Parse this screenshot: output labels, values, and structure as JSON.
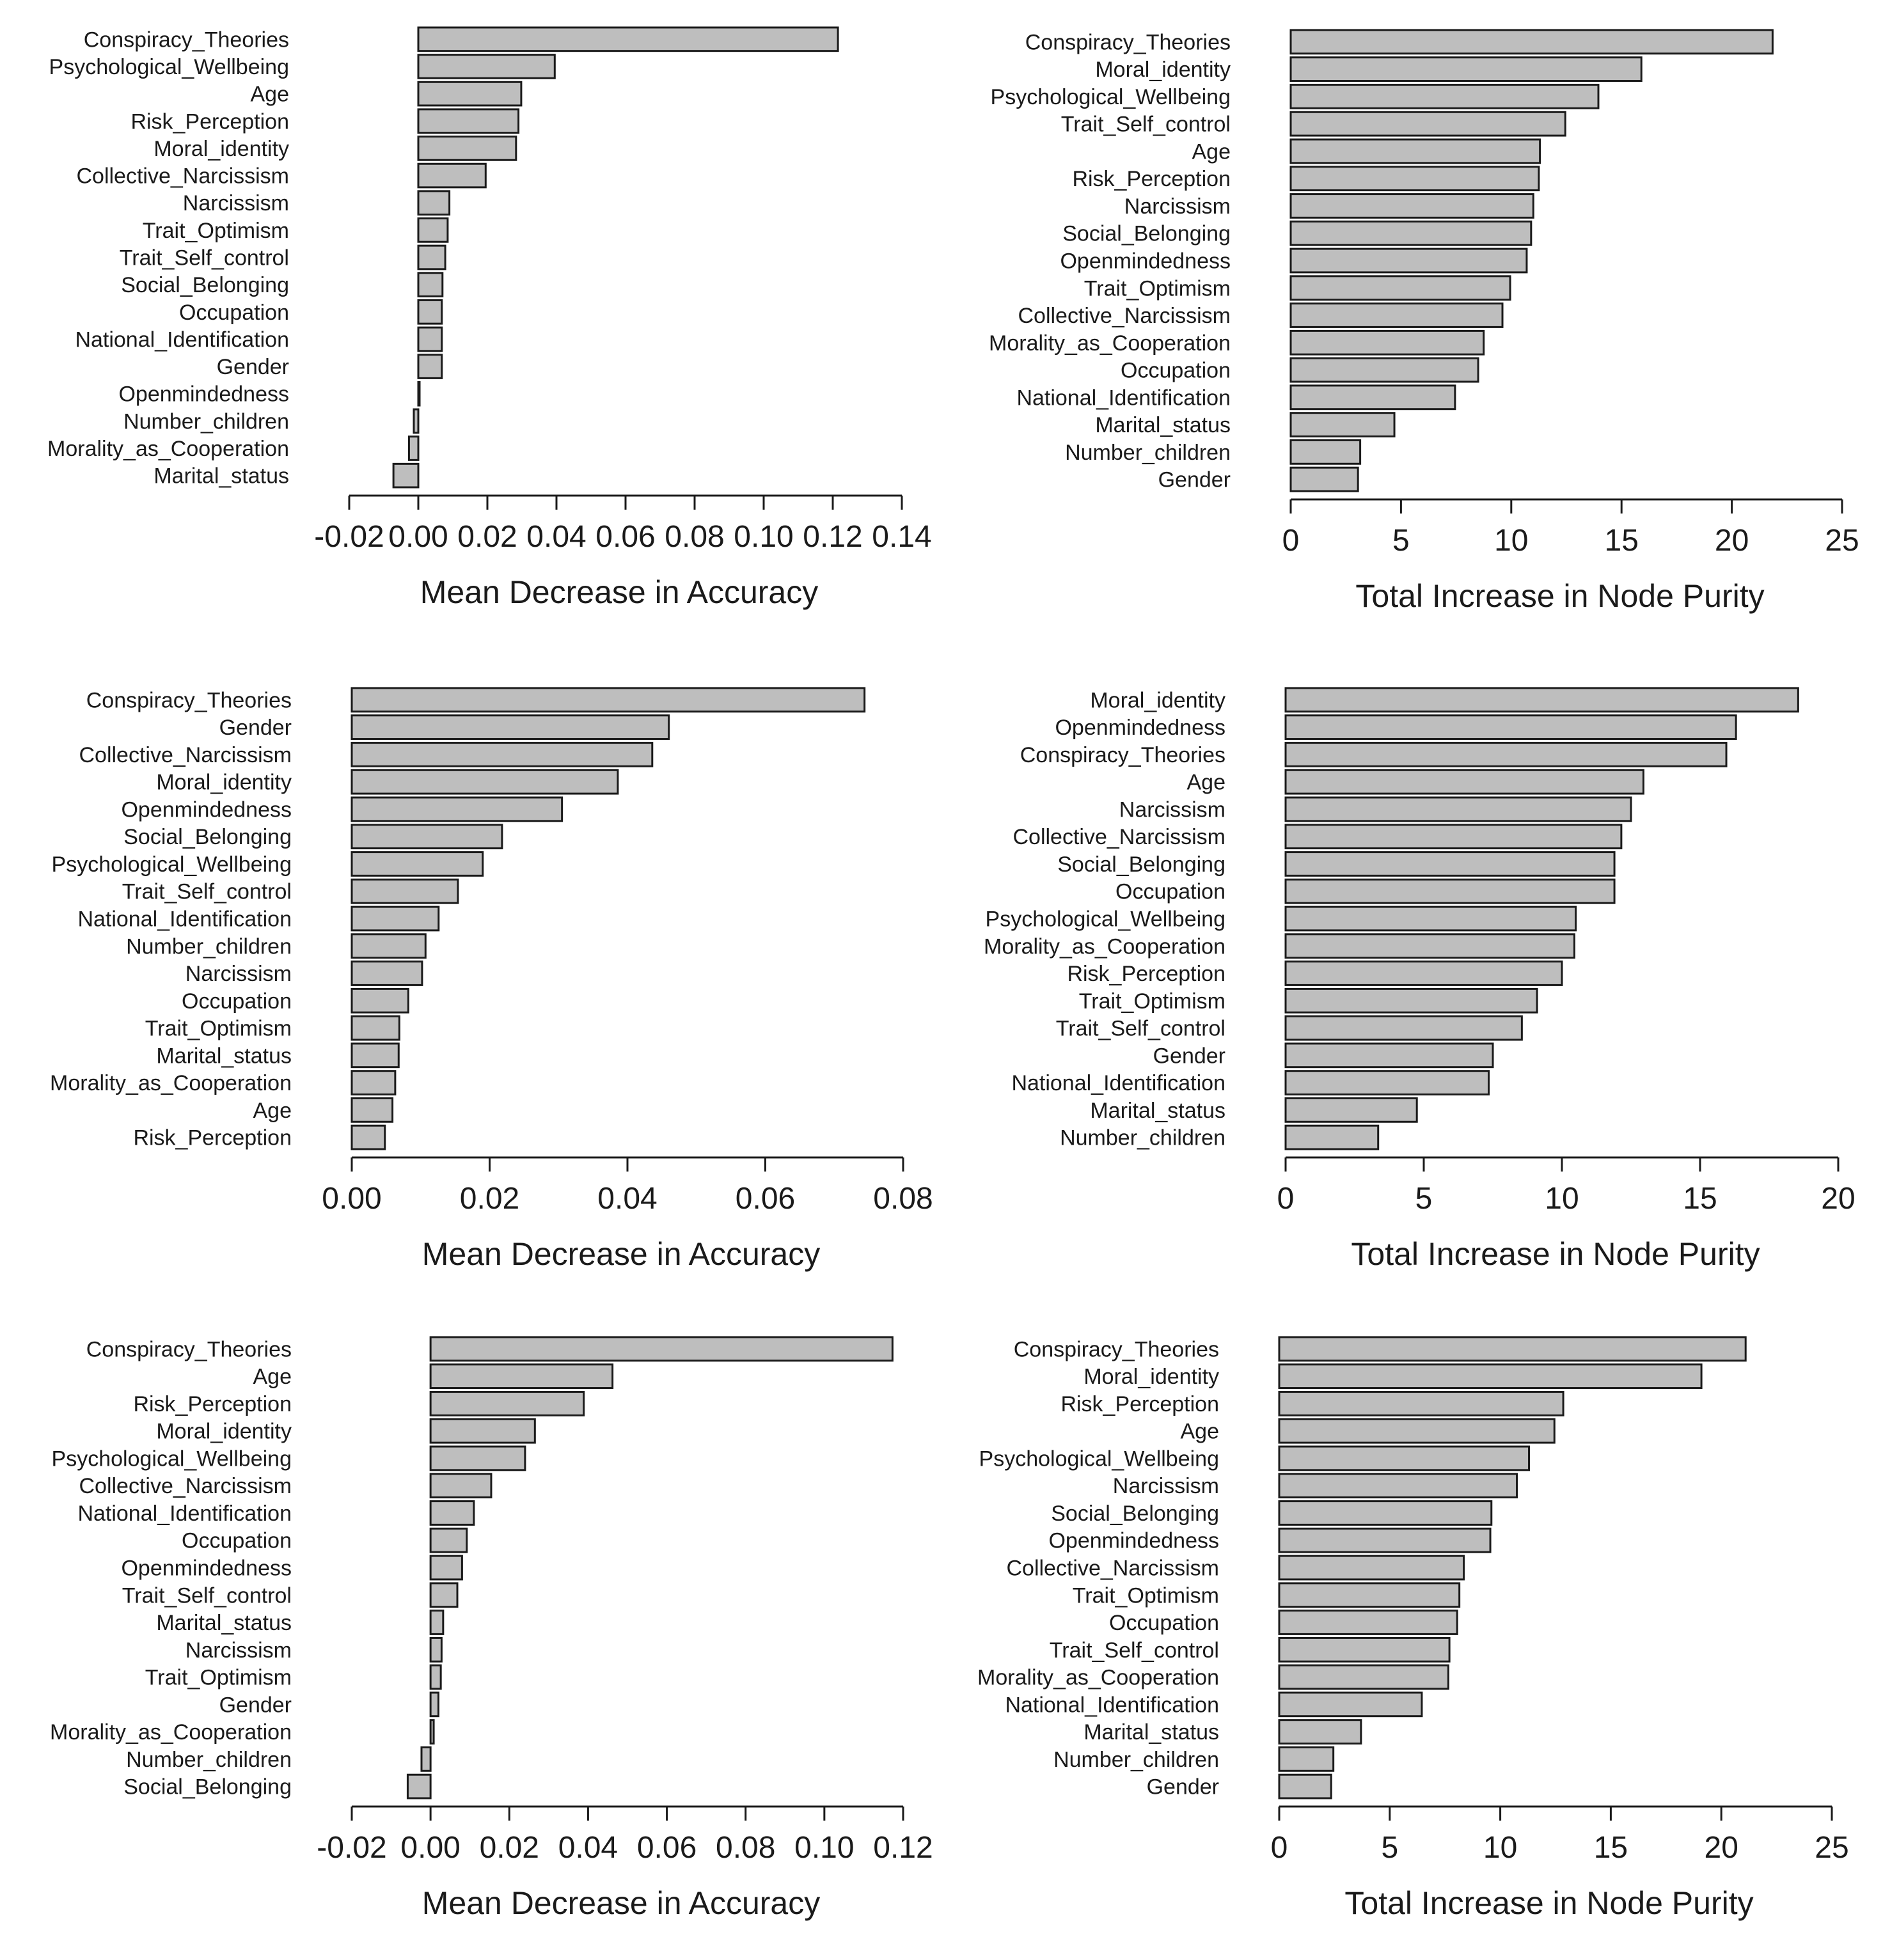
{
  "colors": {
    "bar_fill": "#bebebe",
    "bar_stroke": "#1a1a1a",
    "background": "#ffffff"
  },
  "chart_data": [
    {
      "type": "bar",
      "orientation": "horizontal",
      "title": "",
      "xlabel": "Mean Decrease in Accuracy",
      "ylabel": "",
      "xlim": [
        -0.02,
        0.14
      ],
      "xticks": [
        -0.02,
        0.0,
        0.02,
        0.04,
        0.06,
        0.08,
        0.1,
        0.12,
        0.14
      ],
      "xtick_labels": [
        "-0.02",
        "0.00",
        "0.02",
        "0.04",
        "0.06",
        "0.08",
        "0.10",
        "0.12",
        "0.14"
      ],
      "grid": false,
      "categories": [
        "Conspiracy_Theories",
        "Psychological_Wellbeing",
        "Age",
        "Risk_Perception",
        "Moral_identity",
        "Collective_Narcissism",
        "Narcissism",
        "Trait_Optimism",
        "Trait_Self_control",
        "Social_Belonging",
        "Occupation",
        "National_Identification",
        "Gender",
        "Openmindedness",
        "Number_children",
        "Morality_as_Cooperation",
        "Marital_status"
      ],
      "values": [
        0.1215,
        0.0395,
        0.0298,
        0.029,
        0.0283,
        0.0195,
        0.009,
        0.0085,
        0.0078,
        0.007,
        0.0068,
        0.0068,
        0.0068,
        0.0002,
        -0.0013,
        -0.0027,
        -0.0072
      ]
    },
    {
      "type": "bar",
      "orientation": "horizontal",
      "title": "",
      "xlabel": "Total Increase in Node Purity",
      "ylabel": "",
      "xlim": [
        0,
        25
      ],
      "xticks": [
        0,
        5,
        10,
        15,
        20,
        25
      ],
      "xtick_labels": [
        "0",
        "5",
        "10",
        "15",
        "20",
        "25"
      ],
      "grid": false,
      "categories": [
        "Conspiracy_Theories",
        "Moral_identity",
        "Psychological_Wellbeing",
        "Trait_Self_control",
        "Age",
        "Risk_Perception",
        "Narcissism",
        "Social_Belonging",
        "Openmindedness",
        "Trait_Optimism",
        "Collective_Narcissism",
        "Morality_as_Cooperation",
        "Occupation",
        "National_Identification",
        "Marital_status",
        "Number_children",
        "Gender"
      ],
      "values": [
        21.85,
        15.9,
        13.95,
        12.45,
        11.3,
        11.25,
        11.0,
        10.9,
        10.7,
        9.95,
        9.6,
        8.75,
        8.5,
        7.45,
        4.7,
        3.15,
        3.05
      ]
    },
    {
      "type": "bar",
      "orientation": "horizontal",
      "title": "",
      "xlabel": "Mean Decrease in Accuracy",
      "ylabel": "",
      "xlim": [
        0.0,
        0.08
      ],
      "xticks": [
        0.0,
        0.02,
        0.04,
        0.06,
        0.08
      ],
      "xtick_labels": [
        "0.00",
        "0.02",
        "0.04",
        "0.06",
        "0.08"
      ],
      "grid": false,
      "categories": [
        "Conspiracy_Theories",
        "Gender",
        "Collective_Narcissism",
        "Moral_identity",
        "Openmindedness",
        "Social_Belonging",
        "Psychological_Wellbeing",
        "Trait_Self_control",
        "National_Identification",
        "Number_children",
        "Narcissism",
        "Occupation",
        "Trait_Optimism",
        "Marital_status",
        "Morality_as_Cooperation",
        "Age",
        "Risk_Perception"
      ],
      "values": [
        0.0744,
        0.046,
        0.0436,
        0.0386,
        0.0305,
        0.0218,
        0.019,
        0.0154,
        0.0126,
        0.0107,
        0.0102,
        0.0082,
        0.0069,
        0.0068,
        0.0063,
        0.0059,
        0.0048
      ]
    },
    {
      "type": "bar",
      "orientation": "horizontal",
      "title": "",
      "xlabel": "Total Increase in Node Purity",
      "ylabel": "",
      "xlim": [
        0,
        20
      ],
      "xticks": [
        0,
        5,
        10,
        15,
        20
      ],
      "xtick_labels": [
        "0",
        "5",
        "10",
        "15",
        "20"
      ],
      "grid": false,
      "categories": [
        "Moral_identity",
        "Openmindedness",
        "Conspiracy_Theories",
        "Age",
        "Narcissism",
        "Collective_Narcissism",
        "Social_Belonging",
        "Occupation",
        "Psychological_Wellbeing",
        "Morality_as_Cooperation",
        "Risk_Perception",
        "Trait_Optimism",
        "Trait_Self_control",
        "Gender",
        "National_Identification",
        "Marital_status",
        "Number_children"
      ],
      "values": [
        18.55,
        16.3,
        15.95,
        12.95,
        12.5,
        12.15,
        11.9,
        11.9,
        10.5,
        10.45,
        10.0,
        9.1,
        8.55,
        7.5,
        7.35,
        4.75,
        3.35
      ]
    },
    {
      "type": "bar",
      "orientation": "horizontal",
      "title": "",
      "xlabel": "Mean Decrease in Accuracy",
      "ylabel": "",
      "xlim": [
        -0.02,
        0.12
      ],
      "xticks": [
        -0.02,
        0.0,
        0.02,
        0.04,
        0.06,
        0.08,
        0.1,
        0.12
      ],
      "xtick_labels": [
        "-0.02",
        "0.00",
        "0.02",
        "0.04",
        "0.06",
        "0.08",
        "0.10",
        "0.12"
      ],
      "grid": false,
      "categories": [
        "Conspiracy_Theories",
        "Age",
        "Risk_Perception",
        "Moral_identity",
        "Psychological_Wellbeing",
        "Collective_Narcissism",
        "National_Identification",
        "Occupation",
        "Openmindedness",
        "Trait_Self_control",
        "Marital_status",
        "Narcissism",
        "Trait_Optimism",
        "Gender",
        "Morality_as_Cooperation",
        "Number_children",
        "Social_Belonging"
      ],
      "values": [
        0.1173,
        0.0462,
        0.0389,
        0.0265,
        0.024,
        0.0154,
        0.011,
        0.0092,
        0.008,
        0.0068,
        0.0032,
        0.0028,
        0.0026,
        0.002,
        0.0008,
        -0.0023,
        -0.0058
      ]
    },
    {
      "type": "bar",
      "orientation": "horizontal",
      "title": "",
      "xlabel": "Total Increase in Node Purity",
      "ylabel": "",
      "xlim": [
        0,
        25
      ],
      "xticks": [
        0,
        5,
        10,
        15,
        20,
        25
      ],
      "xtick_labels": [
        "0",
        "5",
        "10",
        "15",
        "20",
        "25"
      ],
      "grid": false,
      "categories": [
        "Conspiracy_Theories",
        "Moral_identity",
        "Risk_Perception",
        "Age",
        "Psychological_Wellbeing",
        "Narcissism",
        "Social_Belonging",
        "Openmindedness",
        "Collective_Narcissism",
        "Trait_Optimism",
        "Occupation",
        "Trait_Self_control",
        "Morality_as_Cooperation",
        "National_Identification",
        "Marital_status",
        "Number_children",
        "Gender"
      ],
      "values": [
        21.1,
        19.1,
        12.85,
        12.45,
        11.3,
        10.75,
        9.6,
        9.55,
        8.35,
        8.15,
        8.05,
        7.7,
        7.65,
        6.45,
        3.7,
        2.45,
        2.35
      ]
    }
  ]
}
